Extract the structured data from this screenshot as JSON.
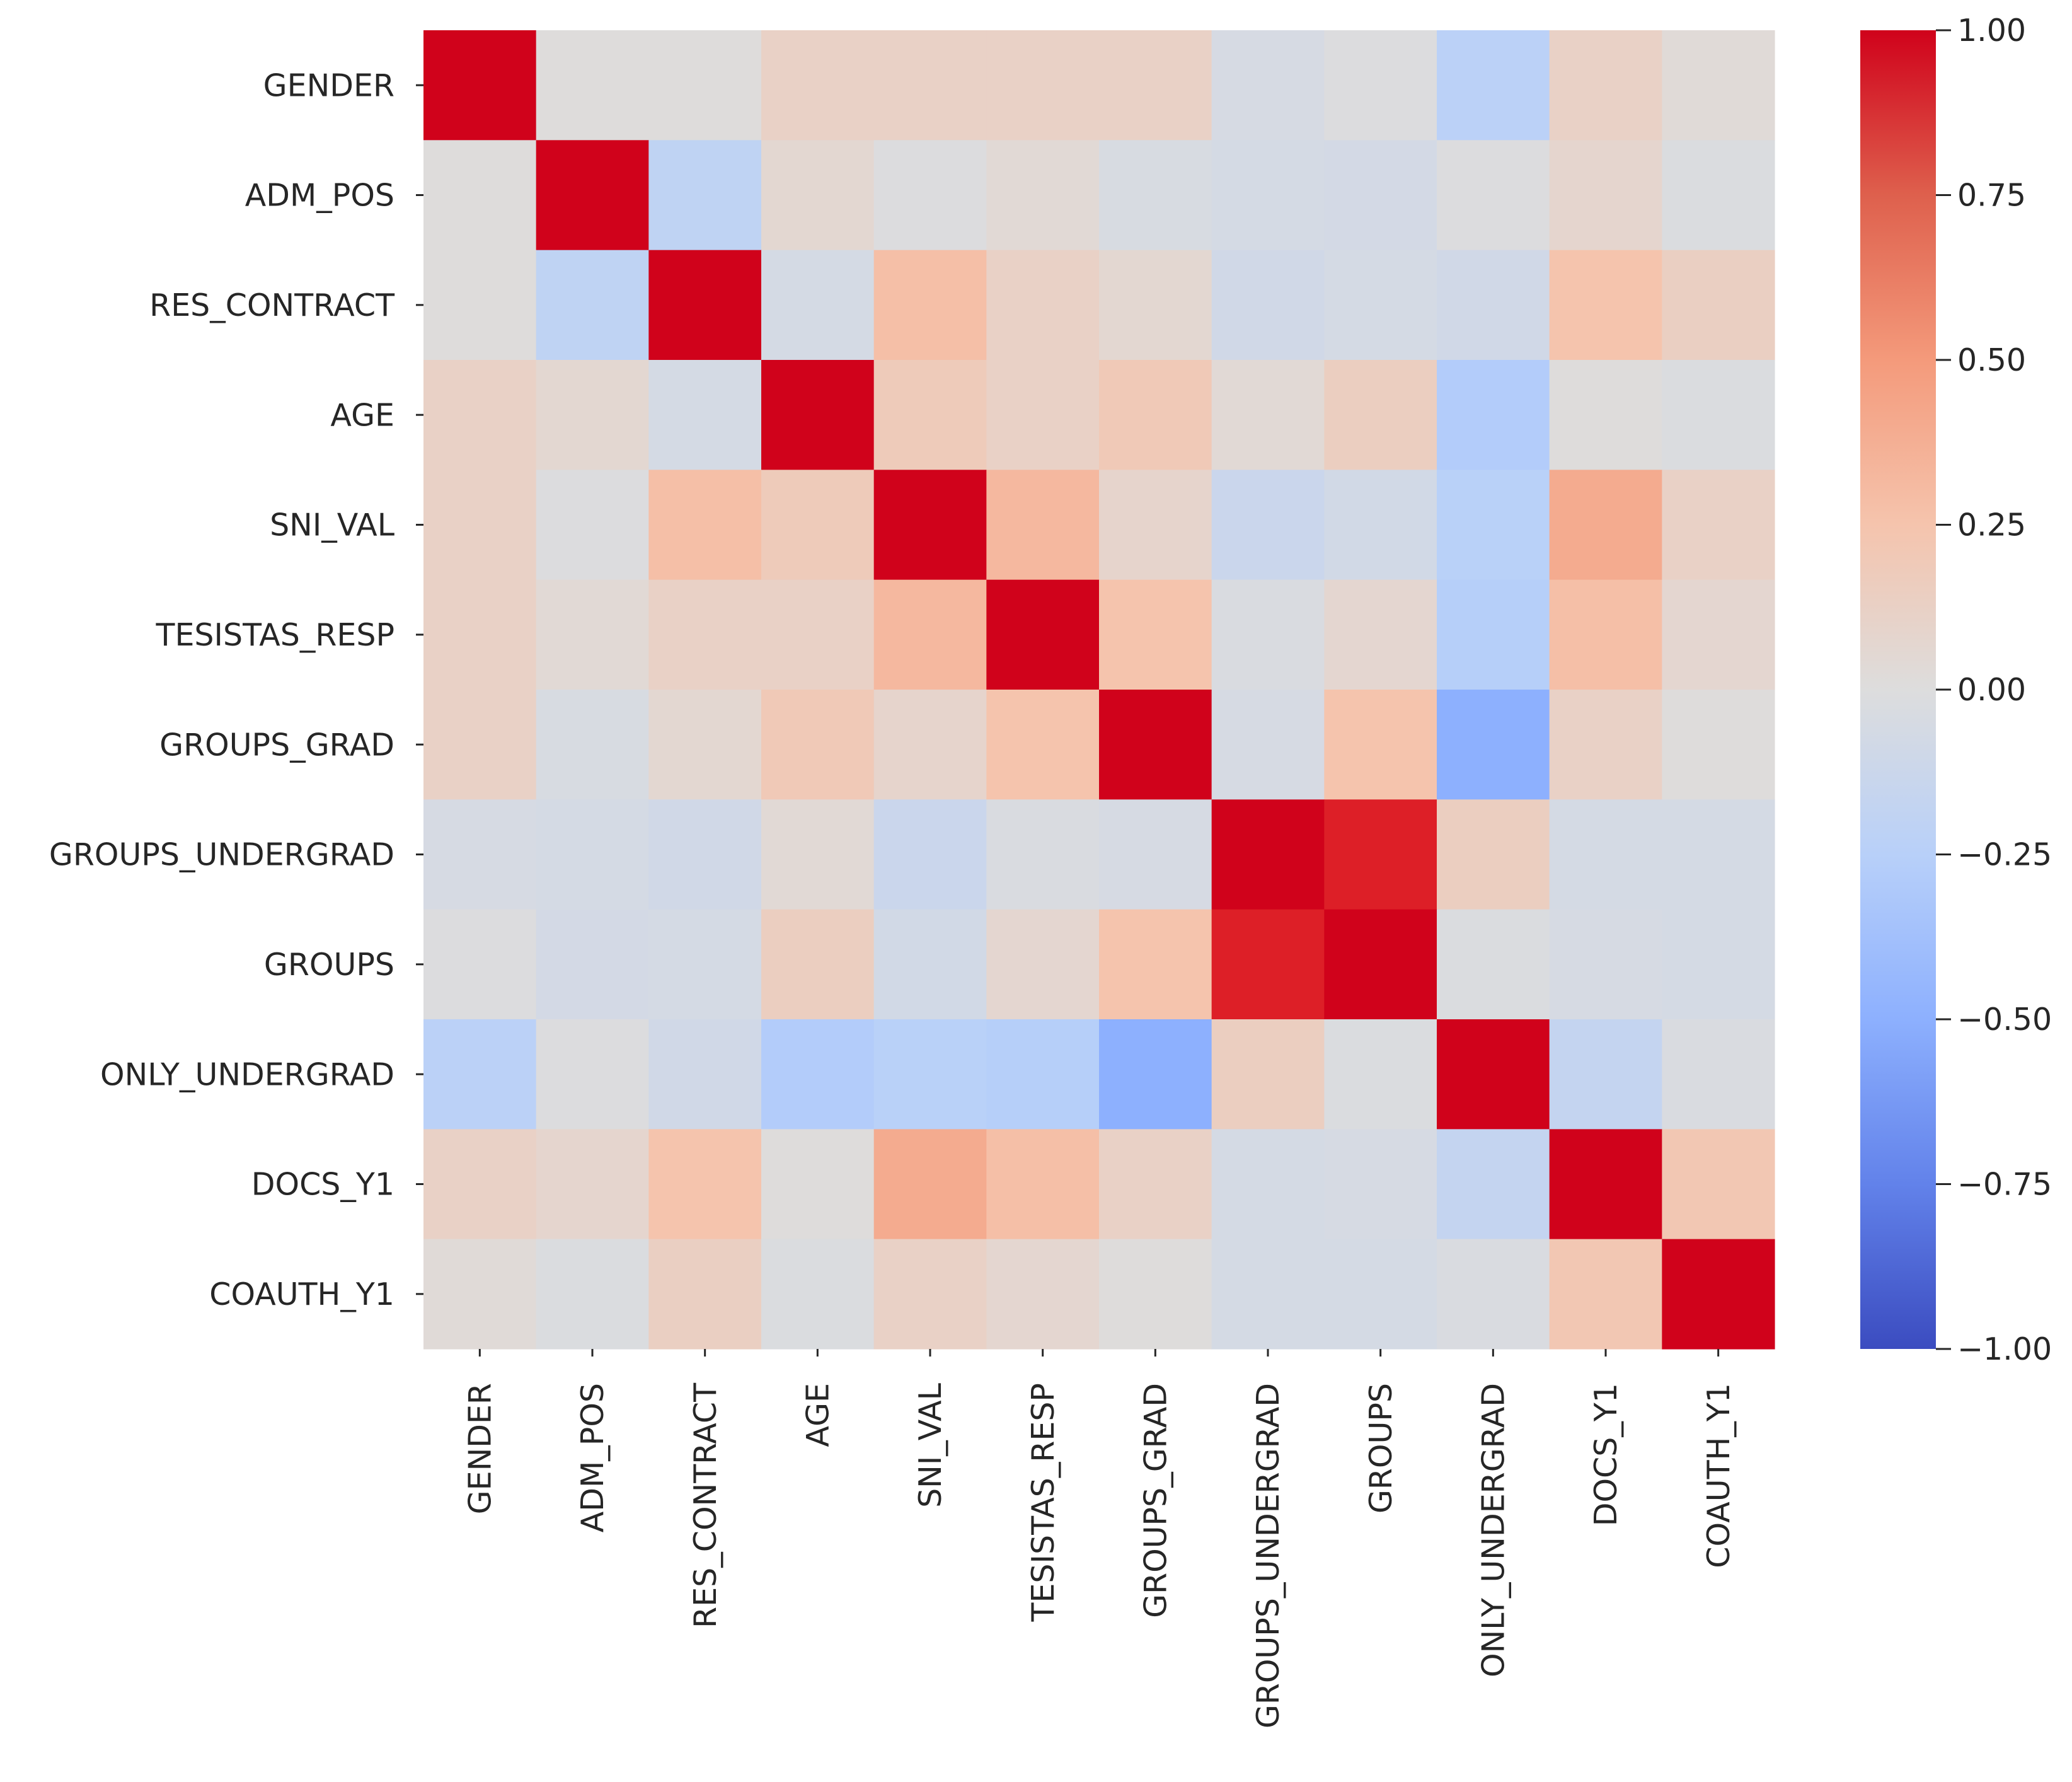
{
  "chart_data": {
    "type": "heatmap",
    "title": "",
    "xlabel": "",
    "ylabel": "",
    "labels": [
      "GENDER",
      "ADM_POS",
      "RES_CONTRACT",
      "AGE",
      "SNI_VAL",
      "TESISTAS_RESP",
      "GROUPS_GRAD",
      "GROUPS_UNDERGRAD",
      "GROUPS",
      "ONLY_UNDERGRAD",
      "DOCS_Y1",
      "COAUTH_Y1"
    ],
    "matrix": [
      [
        1.0,
        0.01,
        0.01,
        0.12,
        0.12,
        0.12,
        0.12,
        -0.05,
        -0.01,
        -0.23,
        0.12,
        0.03
      ],
      [
        0.01,
        1.0,
        -0.2,
        0.06,
        -0.01,
        0.04,
        -0.04,
        -0.06,
        -0.07,
        -0.01,
        0.08,
        -0.02
      ],
      [
        0.01,
        -0.2,
        1.0,
        -0.06,
        0.28,
        0.12,
        0.06,
        -0.09,
        -0.06,
        -0.09,
        0.25,
        0.14
      ],
      [
        0.12,
        0.06,
        -0.06,
        1.0,
        0.18,
        0.12,
        0.2,
        0.04,
        0.15,
        -0.28,
        0.01,
        -0.02
      ],
      [
        0.12,
        -0.01,
        0.28,
        0.18,
        1.0,
        0.32,
        0.09,
        -0.13,
        -0.08,
        -0.24,
        0.4,
        0.12
      ],
      [
        0.12,
        0.04,
        0.12,
        0.12,
        0.32,
        1.0,
        0.25,
        -0.03,
        0.07,
        -0.26,
        0.28,
        0.07
      ],
      [
        0.12,
        -0.04,
        0.06,
        0.2,
        0.09,
        0.25,
        1.0,
        -0.05,
        0.25,
        -0.5,
        0.12,
        0.01
      ],
      [
        -0.05,
        -0.06,
        -0.09,
        0.04,
        -0.13,
        -0.03,
        -0.05,
        1.0,
        0.92,
        0.15,
        -0.06,
        -0.06
      ],
      [
        -0.01,
        -0.07,
        -0.06,
        0.15,
        -0.08,
        0.07,
        0.25,
        0.92,
        1.0,
        -0.02,
        -0.05,
        -0.06
      ],
      [
        -0.23,
        -0.01,
        -0.09,
        -0.28,
        -0.24,
        -0.26,
        -0.5,
        0.15,
        -0.02,
        1.0,
        -0.17,
        -0.03
      ],
      [
        0.12,
        0.08,
        0.25,
        0.01,
        0.4,
        0.28,
        0.12,
        -0.06,
        -0.05,
        -0.17,
        1.0,
        0.22
      ],
      [
        0.03,
        -0.02,
        0.14,
        -0.02,
        0.12,
        0.07,
        0.01,
        -0.06,
        -0.06,
        -0.03,
        0.22,
        1.0
      ]
    ],
    "colorbar": {
      "colormap": "coolwarm",
      "vmin": -1.0,
      "vmax": 1.0,
      "ticks": [
        1.0,
        0.75,
        0.5,
        0.25,
        0.0,
        -0.25,
        -0.5,
        -0.75,
        -1.0
      ],
      "tick_labels": [
        "1.00",
        "0.75",
        "0.50",
        "0.25",
        "0.00",
        "−0.25",
        "−0.50",
        "−0.75",
        "−1.00"
      ]
    }
  }
}
